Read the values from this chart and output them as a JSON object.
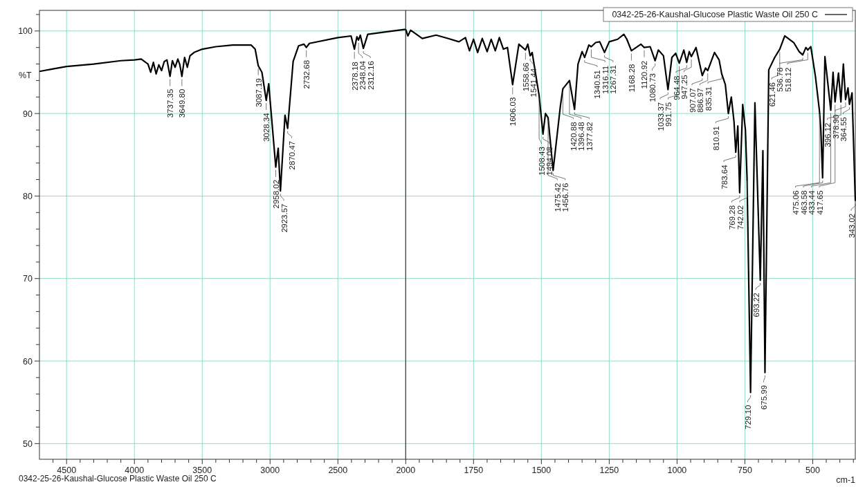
{
  "chart_data": [
    {
      "type": "line",
      "ylabel": "%T",
      "grid": true,
      "marker": "none",
      "line_style": "solid",
      "legend": false,
      "xlim": [
        4700,
        2000
      ],
      "ylim": [
        48.1,
        102.5
      ],
      "xticks": [
        {
          "value": 4600,
          "label": null
        },
        4500,
        {
          "value": 4400,
          "label": null
        },
        {
          "value": 4300,
          "label": null
        },
        {
          "value": 4200,
          "label": null
        },
        {
          "value": 4100,
          "label": null
        },
        4000,
        {
          "value": 3900,
          "label": null
        },
        {
          "value": 3800,
          "label": null
        },
        {
          "value": 3700,
          "label": null
        },
        {
          "value": 3600,
          "label": null
        },
        3500,
        {
          "value": 3400,
          "label": null
        },
        {
          "value": 3300,
          "label": null
        },
        {
          "value": 3200,
          "label": null
        },
        {
          "value": 3100,
          "label": null
        },
        3000,
        {
          "value": 2900,
          "label": null
        },
        {
          "value": 2800,
          "label": null
        },
        {
          "value": 2700,
          "label": null
        },
        {
          "value": 2600,
          "label": null
        },
        2500,
        {
          "value": 2400,
          "label": null
        },
        {
          "value": 2300,
          "label": null
        },
        {
          "value": 2200,
          "label": null
        },
        {
          "value": 2100,
          "label": null
        }
      ],
      "yticks": [
        50,
        {
          "value": 52,
          "label": null
        },
        {
          "value": 54,
          "label": null
        },
        {
          "value": 56,
          "label": null
        },
        {
          "value": 58,
          "label": null
        },
        60,
        {
          "value": 62,
          "label": null
        },
        {
          "value": 64,
          "label": null
        },
        {
          "value": 66,
          "label": null
        },
        {
          "value": 68,
          "label": null
        },
        70,
        {
          "value": 72,
          "label": null
        },
        {
          "value": 74,
          "label": null
        },
        {
          "value": 76,
          "label": null
        },
        {
          "value": 78,
          "label": null
        },
        80,
        {
          "value": 82,
          "label": null
        },
        {
          "value": 84,
          "label": null
        },
        {
          "value": 86,
          "label": null
        },
        {
          "value": 88,
          "label": null
        },
        90,
        {
          "value": 92,
          "label": null
        },
        {
          "value": 94,
          "label": null
        },
        {
          "value": 96,
          "label": null
        },
        {
          "value": 98,
          "label": null
        },
        100,
        {
          "value": 102,
          "label": null
        }
      ],
      "series": [
        {
          "color": "#000000",
          "x": [
            4700,
            4600,
            4500,
            4300,
            4100,
            4000,
            3950,
            3900,
            3880,
            3860,
            3840,
            3820,
            3800,
            3780,
            3760,
            3737.35,
            3720,
            3700,
            3680,
            3665,
            3649.8,
            3630,
            3610,
            3590,
            3560,
            3500,
            3400,
            3276,
            3140,
            3110,
            3087.19,
            3060,
            3028.34,
            3010,
            2958.02,
            2940,
            2923.57,
            2890,
            2870.47,
            2830,
            2790,
            2750,
            2732.68,
            2710,
            2500,
            2403,
            2378.18,
            2360,
            2348.04,
            2335,
            2312.16,
            2280,
            2100,
            2000
          ],
          "values": [
            95.1,
            95.4,
            95.7,
            96.0,
            96.4,
            96.5,
            96.6,
            96.0,
            95.0,
            96.2,
            94.8,
            95.9,
            95.2,
            96.3,
            96.5,
            94.5,
            96.4,
            95.6,
            96.6,
            95.9,
            94.5,
            96.8,
            95.6,
            97.0,
            97.4,
            97.8,
            98.1,
            98.3,
            98.3,
            97.8,
            95.8,
            95.0,
            91.6,
            93.6,
            83.5,
            85.8,
            80.6,
            89.8,
            88.2,
            96.3,
            98.2,
            98.4,
            98.0,
            98.5,
            99.2,
            99.4,
            97.8,
            99.3,
            98.9,
            99.5,
            97.9,
            99.6,
            100.0,
            100.2
          ]
        }
      ],
      "annotations": [
        {
          "text": "3737.35",
          "x": 3737.35,
          "y": 94.5
        },
        {
          "text": "3649.80",
          "x": 3649.8,
          "y": 94.5
        },
        {
          "text": "3087.19",
          "x": 3087.19,
          "y": 95.8
        },
        {
          "text": "3028.34",
          "x": 3028.34,
          "y": 91.6
        },
        {
          "text": "2958.02",
          "x": 2958.02,
          "y": 83.5
        },
        {
          "text": "2923.57",
          "x": 2923.57,
          "y": 80.6
        },
        {
          "text": "2870.47",
          "x": 2870.47,
          "y": 88.2
        },
        {
          "text": "2732.68",
          "x": 2732.68,
          "y": 98.0
        },
        {
          "text": "2378.18",
          "x": 2378.18,
          "y": 97.8
        },
        {
          "text": "2348.04",
          "x": 2348.04,
          "y": 98.9
        },
        {
          "text": "2312.16",
          "x": 2312.16,
          "y": 97.9
        },
        "0342-25-26-Kaushal-Glucose Plastic Waste Oil 250 C"
      ]
    },
    {
      "type": "line",
      "xlabel": "cm-1",
      "grid": true,
      "marker": "none",
      "line_style": "solid",
      "legend": "top right",
      "tick_labels": "x",
      "xlim": [
        2000,
        343
      ],
      "ylim": [
        48.1,
        102.5
      ],
      "xticks": [
        2000,
        {
          "value": 1950,
          "label": null
        },
        {
          "value": 1900,
          "label": null
        },
        {
          "value": 1850,
          "label": null
        },
        {
          "value": 1800,
          "label": null
        },
        1750,
        {
          "value": 1700,
          "label": null
        },
        {
          "value": 1650,
          "label": null
        },
        {
          "value": 1600,
          "label": null
        },
        {
          "value": 1550,
          "label": null
        },
        1500,
        {
          "value": 1450,
          "label": null
        },
        {
          "value": 1400,
          "label": null
        },
        {
          "value": 1350,
          "label": null
        },
        {
          "value": 1300,
          "label": null
        },
        1250,
        {
          "value": 1200,
          "label": null
        },
        {
          "value": 1150,
          "label": null
        },
        {
          "value": 1100,
          "label": null
        },
        {
          "value": 1050,
          "label": null
        },
        1000,
        {
          "value": 950,
          "label": null
        },
        {
          "value": 900,
          "label": null
        },
        {
          "value": 850,
          "label": null
        },
        {
          "value": 800,
          "label": null
        },
        750,
        {
          "value": 700,
          "label": null
        },
        {
          "value": 650,
          "label": null
        },
        {
          "value": 600,
          "label": null
        },
        {
          "value": 550,
          "label": null
        },
        500,
        {
          "value": 450,
          "label": null
        },
        {
          "value": 400,
          "label": null
        },
        {
          "value": 350,
          "label": null
        }
      ],
      "yticks": [
        50,
        60,
        70,
        80,
        90,
        100
      ],
      "series": [
        {
          "name": "0342-25-26-Kaushal-Glucose Plastic Waste Oil 250 C",
          "color": "#000000",
          "x": [
            2000,
            1992,
            1982,
            1939,
            1888,
            1845,
            1804,
            1780,
            1765,
            1750,
            1735,
            1718,
            1700,
            1685,
            1670,
            1655,
            1640,
            1625,
            1606.03,
            1583,
            1558.66,
            1550,
            1541.44,
            1534,
            1508.43,
            1494.08,
            1485,
            1475.42,
            1456.76,
            1430,
            1420.88,
            1396.48,
            1377.82,
            1365,
            1350,
            1340.51,
            1325,
            1316.11,
            1300,
            1285,
            1267.31,
            1250,
            1219,
            1196,
            1185,
            1168.28,
            1133,
            1120.92,
            1099,
            1080.73,
            1069,
            1050,
            1033.37,
            1019,
            1005,
            991.75,
            975,
            964.48,
            955,
            947.25,
            930,
            907.07,
            895,
            886.97,
            862,
            845,
            835.31,
            822,
            810.91,
            800,
            790,
            783.64,
            776,
            769.28,
            758,
            748,
            742.02,
            729.1,
            713,
            693.22,
            683.6,
            675.99,
            662,
            640,
            621.46,
            603,
            570,
            550,
            536.78,
            525,
            518.12,
            507,
            490,
            475.06,
            470,
            463.58,
            455,
            433.44,
            425,
            417.65,
            405,
            396.12,
            387,
            378.9,
            370,
            364.55,
            355,
            343.02
          ],
          "values": [
            100.2,
            99.4,
            100.1,
            99.1,
            99.5,
            99.1,
            98.7,
            99.2,
            97.6,
            99.0,
            97.4,
            99.1,
            97.5,
            99.0,
            97.6,
            99.2,
            97.8,
            98.0,
            93.5,
            98.4,
            97.7,
            98.4,
            97.0,
            97.4,
            92.2,
            87.5,
            90.0,
            89.5,
            83.1,
            90.9,
            93.0,
            94.0,
            90.5,
            96.0,
            97.5,
            96.8,
            98.3,
            98.1,
            98.6,
            98.7,
            97.4,
            98.7,
            99.0,
            99.6,
            99.0,
            97.6,
            98.4,
            98.0,
            98.1,
            96.4,
            97.7,
            97.0,
            92.9,
            96.8,
            97.3,
            96.1,
            97.7,
            96.2,
            97.5,
            96.9,
            98.0,
            94.6,
            95.5,
            95.2,
            97.4,
            96.5,
            94.8,
            93.5,
            90.0,
            92.0,
            89.0,
            85.3,
            88.5,
            80.4,
            91.1,
            88.0,
            82.2,
            56.2,
            91.3,
            69.8,
            85.5,
            58.6,
            95.3,
            96.8,
            97.8,
            99.4,
            98.6,
            97.5,
            97.1,
            98.0,
            97.7,
            98.1,
            94.5,
            90.3,
            88.0,
            82.2,
            96.9,
            90.4,
            95.0,
            91.4,
            94.9,
            91.4,
            96.0,
            91.7,
            93.1,
            91.1,
            92.5,
            79.4
          ]
        }
      ],
      "annotations": [
        {
          "text": "1606.03",
          "x": 1606.03,
          "y": 93.5
        },
        {
          "text": "1558.66",
          "x": 1558.66,
          "y": 97.7
        },
        {
          "text": "1541.44",
          "x": 1541.44,
          "y": 97.0
        },
        {
          "text": "1508.43",
          "x": 1508.43,
          "y": 92.2
        },
        {
          "text": "1494.08",
          "x": 1494.08,
          "y": 87.5
        },
        {
          "text": "1475.42",
          "x": 1475.42,
          "y": 89.5
        },
        {
          "text": "1456.76",
          "x": 1456.76,
          "y": 83.1
        },
        {
          "text": "1420.88",
          "x": 1420.88,
          "y": 93.0
        },
        {
          "text": "1396.48",
          "x": 1396.48,
          "y": 94.0
        },
        {
          "text": "1377.82",
          "x": 1377.82,
          "y": 90.5
        },
        {
          "text": "1340.51",
          "x": 1340.51,
          "y": 96.8
        },
        {
          "text": "1316.11",
          "x": 1316.11,
          "y": 98.1
        },
        {
          "text": "1267.31",
          "x": 1267.31,
          "y": 97.4
        },
        {
          "text": "1168.28",
          "x": 1168.28,
          "y": 97.6
        },
        {
          "text": "1120.92",
          "x": 1120.92,
          "y": 98.0
        },
        {
          "text": "1080.73",
          "x": 1080.73,
          "y": 96.4
        },
        {
          "text": "1033.37",
          "x": 1033.37,
          "y": 92.9
        },
        {
          "text": "991.75",
          "x": 991.75,
          "y": 96.1
        },
        {
          "text": "964.48",
          "x": 964.48,
          "y": 96.2
        },
        {
          "text": "947.25",
          "x": 947.25,
          "y": 96.9
        },
        {
          "text": "907.07",
          "x": 907.07,
          "y": 94.6
        },
        {
          "text": "886.97",
          "x": 886.97,
          "y": 95.2
        },
        {
          "text": "835.31",
          "x": 835.31,
          "y": 94.8
        },
        {
          "text": "810.91",
          "x": 810.91,
          "y": 90.0
        },
        {
          "text": "783.64",
          "x": 783.64,
          "y": 85.3
        },
        {
          "text": "769.28",
          "x": 769.28,
          "y": 80.4
        },
        {
          "text": "742.02",
          "x": 742.02,
          "y": 82.2
        },
        {
          "text": "729.10",
          "x": 729.1,
          "y": 56.2
        },
        {
          "text": "693.22",
          "x": 693.22,
          "y": 69.8
        },
        {
          "text": "675.99",
          "x": 675.99,
          "y": 58.6
        },
        {
          "text": "621.46",
          "x": 621.46,
          "y": 97.8
        },
        {
          "text": "536.78",
          "x": 536.78,
          "y": 97.1
        },
        {
          "text": "518.12",
          "x": 518.12,
          "y": 97.7
        },
        {
          "text": "475.06",
          "x": 475.06,
          "y": 90.3
        },
        {
          "text": "463.58",
          "x": 463.58,
          "y": 82.2
        },
        {
          "text": "433.44",
          "x": 433.44,
          "y": 90.4
        },
        {
          "text": "417.65",
          "x": 417.65,
          "y": 91.4
        },
        {
          "text": "396.12",
          "x": 396.12,
          "y": 91.4
        },
        {
          "text": "378.90",
          "x": 378.9,
          "y": 91.7
        },
        {
          "text": "364.55",
          "x": 364.55,
          "y": 91.1
        },
        {
          "text": "343.02",
          "x": 343.02,
          "y": 79.4
        }
      ]
    }
  ]
}
